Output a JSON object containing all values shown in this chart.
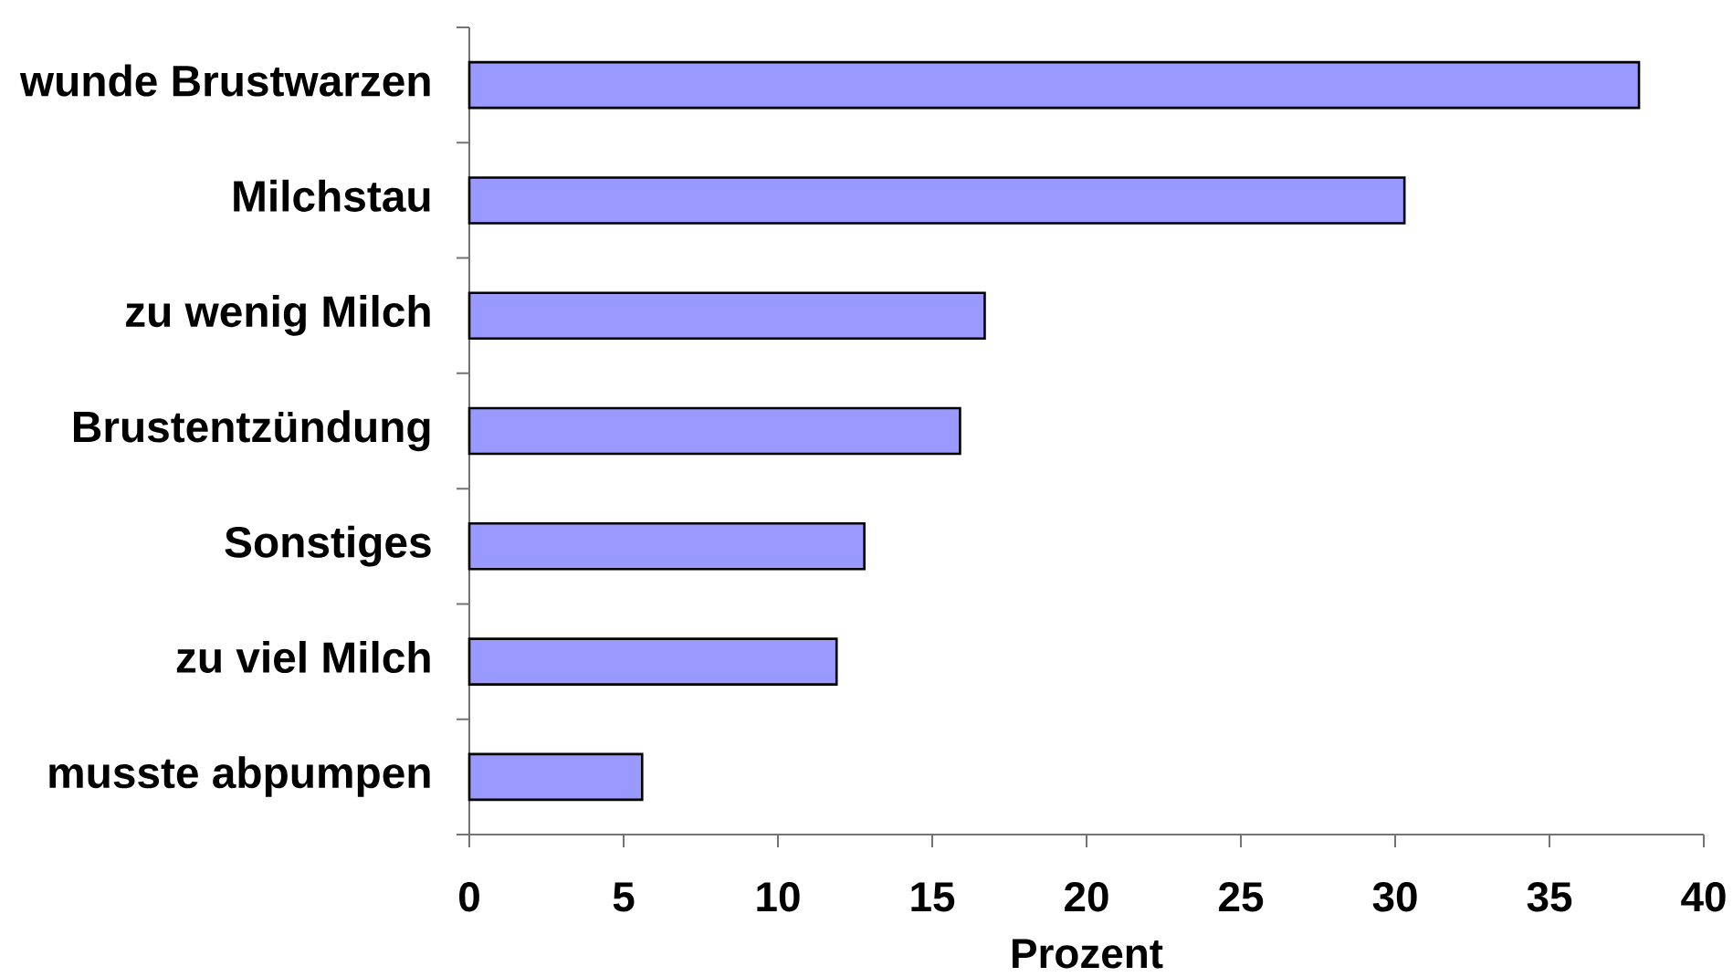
{
  "chart_data": {
    "type": "bar",
    "orientation": "horizontal",
    "xlabel": "Prozent",
    "categories": [
      "wunde Brustwarzen",
      "Milchstau",
      "zu wenig Milch",
      "Brustentzündung",
      "Sonstiges",
      "zu viel Milch",
      "musste abpumpen"
    ],
    "values": [
      37.9,
      30.3,
      16.7,
      15.9,
      12.8,
      11.9,
      5.6
    ],
    "color": "#9999ff",
    "xlim": [
      0,
      40
    ],
    "xticks": [
      0,
      5,
      10,
      15,
      20,
      25,
      30,
      35,
      40
    ]
  }
}
